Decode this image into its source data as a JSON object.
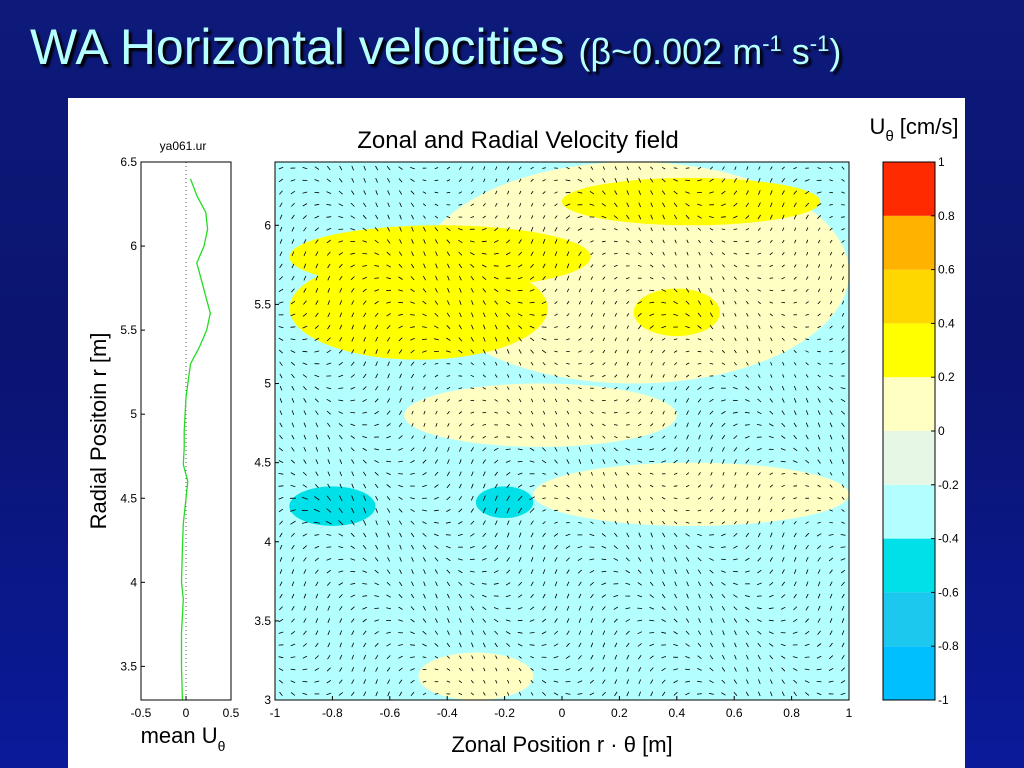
{
  "slide": {
    "title_main": "WA Horizontal velocities",
    "title_paren_open": "(",
    "title_beta": "β",
    "title_value": "~0.002 m",
    "title_exp1": "-1",
    "title_s": " s",
    "title_exp2": "-1",
    "title_paren_close": ")"
  },
  "colors": {
    "background": "#0b1470",
    "title_text": "#b6ffff",
    "profile_line": "#22dd22"
  },
  "chart_data": [
    {
      "type": "line",
      "title": "ya061.ur",
      "xlabel": "mean U",
      "xlabel_subscript": "θ",
      "ylabel": "Radial Positoin  r  [m]",
      "xlim": [
        -0.5,
        0.5
      ],
      "ylim": [
        3.3,
        6.5
      ],
      "xticks": [
        "-0.5",
        "0",
        "0.5"
      ],
      "yticks": [
        "3.5",
        "4",
        "4.5",
        "5",
        "5.5",
        "6",
        "6.5"
      ],
      "grid": "dotted line at x = 0",
      "series": [
        {
          "x": [
            0.05,
            0.12,
            0.22,
            0.24,
            0.2,
            0.12,
            0.17,
            0.27,
            0.23,
            0.15,
            0.05,
            0.0,
            -0.02,
            -0.02,
            -0.03,
            0.02,
            0.0,
            -0.03,
            -0.04,
            -0.05,
            -0.03,
            -0.05,
            -0.05,
            -0.04
          ],
          "y": [
            6.4,
            6.3,
            6.2,
            6.1,
            6.0,
            5.9,
            5.8,
            5.6,
            5.5,
            5.4,
            5.3,
            5.1,
            4.9,
            4.8,
            4.7,
            4.6,
            4.5,
            4.35,
            4.2,
            4.0,
            3.9,
            3.7,
            3.5,
            3.3
          ]
        }
      ]
    },
    {
      "type": "heatmap",
      "title": "Zonal and Radial Velocity field",
      "xlabel": "Zonal Position  r · θ  [m]",
      "ylabel": "",
      "xlim": [
        -1,
        1
      ],
      "ylim": [
        3,
        6.4
      ],
      "xticks": [
        "-1",
        "-0.8",
        "-0.6",
        "-0.4",
        "-0.2",
        "0",
        "0.2",
        "0.4",
        "0.6",
        "0.8",
        "1"
      ],
      "yticks": [
        "3",
        "3.5",
        "4",
        "4.5",
        "5",
        "5.5",
        "6"
      ],
      "overlay": "velocity vector arrows (quiver)",
      "regions": [
        {
          "level": 0.1,
          "x": [
            -0.5,
            1.0
          ],
          "y": [
            5.0,
            6.4
          ],
          "desc": "light yellow upper band"
        },
        {
          "level": 0.3,
          "x": [
            -0.95,
            0.1
          ],
          "y": [
            5.6,
            6.0
          ],
          "desc": "yellow patch upper left"
        },
        {
          "level": 0.3,
          "x": [
            0.0,
            0.9
          ],
          "y": [
            6.0,
            6.3
          ],
          "desc": "yellow band upper right"
        },
        {
          "level": 0.3,
          "x": [
            -0.95,
            -0.05
          ],
          "y": [
            5.15,
            5.8
          ],
          "desc": "yellow patch left"
        },
        {
          "level": 0.3,
          "x": [
            0.25,
            0.55
          ],
          "y": [
            5.3,
            5.6
          ],
          "desc": "small yellow patch"
        },
        {
          "level": 0.1,
          "x": [
            -0.55,
            0.4
          ],
          "y": [
            4.6,
            5.0
          ],
          "desc": "light yellow middle"
        },
        {
          "level": 0.1,
          "x": [
            -0.1,
            1.0
          ],
          "y": [
            4.1,
            4.5
          ],
          "desc": "light yellow lower right"
        },
        {
          "level": 0.1,
          "x": [
            -0.5,
            -0.1
          ],
          "y": [
            3.0,
            3.3
          ],
          "desc": "light yellow bottom"
        },
        {
          "level": -0.5,
          "x": [
            -0.95,
            -0.65
          ],
          "y": [
            4.1,
            4.35
          ],
          "desc": "cyan patch"
        },
        {
          "level": -0.5,
          "x": [
            -0.3,
            -0.1
          ],
          "y": [
            4.15,
            4.35
          ],
          "desc": "cyan patch"
        }
      ],
      "background_level": -0.3,
      "colorbar": {
        "title": "U",
        "title_subscript": "θ",
        "title_units": "[cm/s]",
        "levels": [
          -1,
          -0.8,
          -0.6,
          -0.4,
          -0.2,
          0,
          0.2,
          0.4,
          0.6,
          0.8,
          1
        ],
        "labels": [
          "1",
          "0.8",
          "0.6",
          "0.4",
          "0.2",
          "0",
          "-0.2",
          "-0.4",
          "-0.6",
          "-0.8",
          "-1"
        ],
        "colors": [
          "#00bfff",
          "#1cc8ee",
          "#00e0e8",
          "#b3ffff",
          "#e6f7e6",
          "#ffffc4",
          "#ffff00",
          "#ffd700",
          "#ffb200",
          "#ff2a00"
        ]
      }
    }
  ]
}
